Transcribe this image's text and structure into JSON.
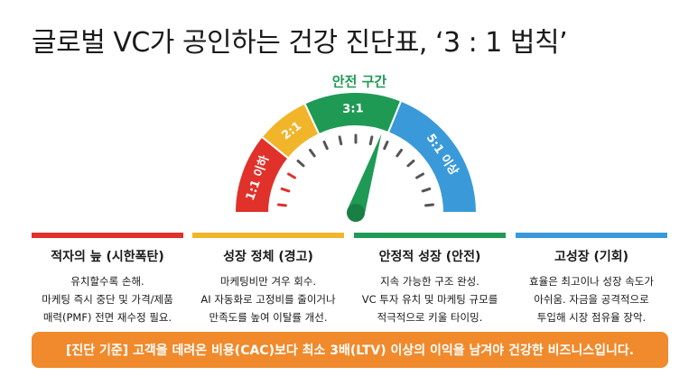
{
  "header": {
    "title": "글로벌 VC가 공인하는 건강 진단표, ‘3 : 1 법칙’"
  },
  "gauge": {
    "zone_label": "안전 구간",
    "segments": [
      {
        "label": "1:1 이하"
      },
      {
        "label": "2:1"
      },
      {
        "label": "3:1"
      },
      {
        "label": "5:1 이상"
      }
    ]
  },
  "columns": [
    {
      "title": "적자의 늪 (시한폭탄)",
      "lines": [
        "유치할수록 손해.",
        "마케팅 즉시 중단 및 가격/제품",
        "매력(PMF) 전면 재수정 필요."
      ]
    },
    {
      "title": "성장 정체 (경고)",
      "lines": [
        "마케팅비만 겨우 회수.",
        "AI 자동화로 고정비를 줄이거나",
        "만족도를 높여 이탈률 개선."
      ]
    },
    {
      "title": "안정적 성장 (안전)",
      "lines": [
        "지속 가능한 구조 완성.",
        "VC 투자 유치 및 마케팅 규모를",
        "적극적으로 키울 타이밍."
      ]
    },
    {
      "title": "고성장 (기회)",
      "lines": [
        "효율은 최고이나 성장 속도가",
        "아쉬움. 자금을 공격적으로",
        "투입해 시장 점유율 장악."
      ]
    }
  ],
  "banner": {
    "text": "[진단 기준] 고객을 데려온 비용(CAC)보다 최소 3배(LTV) 이상의 이익을 남겨야 건강한 비즈니스입니다."
  }
}
